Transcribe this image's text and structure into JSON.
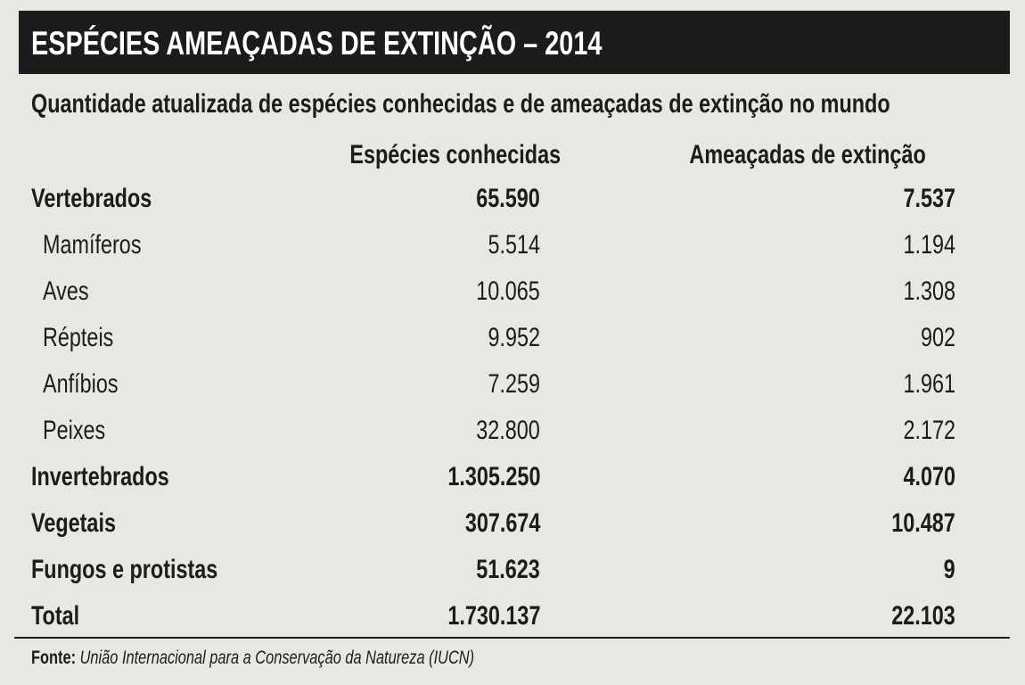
{
  "header": {
    "title": "ESPÉCIES AMEAÇADAS DE EXTINÇÃO – 2014"
  },
  "subtitle": "Quantidade atualizada de espécies conhecidas e de ameaçadas de extinção no mundo",
  "footer": {
    "source_label": "Fonte:",
    "source_text": "União Internacional para a Conservação da Natureza (IUCN)"
  },
  "colors": {
    "background": "#e8e7e2",
    "title_bar": "#1d1b1c",
    "title_text": "#ffffff"
  },
  "chart_data": {
    "type": "table",
    "title": "ESPÉCIES AMEAÇADAS DE EXTINÇÃO – 2014",
    "columns": [
      "",
      "Espécies conhecidas",
      "Ameaçadas de extinção"
    ],
    "rows": [
      {
        "label": "Vertebrados",
        "known": "65.590",
        "threatened": "7.537",
        "level": "group"
      },
      {
        "label": "Mamíferos",
        "known": "5.514",
        "threatened": "1.194",
        "level": "sub"
      },
      {
        "label": "Aves",
        "known": "10.065",
        "threatened": "1.308",
        "level": "sub"
      },
      {
        "label": "Répteis",
        "known": "9.952",
        "threatened": "902",
        "level": "sub"
      },
      {
        "label": "Anfíbios",
        "known": "7.259",
        "threatened": "1.961",
        "level": "sub"
      },
      {
        "label": "Peixes",
        "known": "32.800",
        "threatened": "2.172",
        "level": "sub"
      },
      {
        "label": "Invertebrados",
        "known": "1.305.250",
        "threatened": "4.070",
        "level": "group"
      },
      {
        "label": "Vegetais",
        "known": "307.674",
        "threatened": "10.487",
        "level": "group"
      },
      {
        "label": "Fungos e protistas",
        "known": "51.623",
        "threatened": "9",
        "level": "group"
      },
      {
        "label": "Total",
        "known": "1.730.137",
        "threatened": "22.103",
        "level": "group"
      }
    ]
  }
}
